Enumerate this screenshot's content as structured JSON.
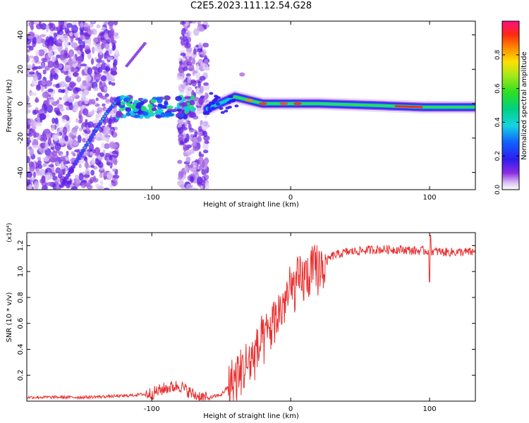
{
  "title": "C2E5.2023.111.12.54.G28",
  "chart_data": [
    {
      "type": "heatmap",
      "panel": "spectrogram",
      "xlabel": "Height of straight line (km)",
      "ylabel": "Frequency (Hz)",
      "xlim": [
        -190,
        133
      ],
      "ylim": [
        -50,
        48
      ],
      "xticks": [
        -100,
        0,
        100
      ],
      "xtick_labels": [
        "-100",
        "0",
        "100"
      ],
      "yticks": [
        -40,
        -20,
        0,
        20,
        40
      ],
      "ytick_labels": [
        "-40",
        "-20",
        "0",
        "20",
        "40"
      ],
      "colorbar": {
        "label": "Normalized spectral amplitude",
        "range": [
          0,
          1
        ],
        "ticks": [
          0.0,
          0.2,
          0.4,
          0.6,
          0.8
        ],
        "tick_labels": [
          "0.0",
          "0.2",
          "0.4",
          "0.6",
          "0.8"
        ]
      },
      "features": [
        {
          "name": "main signal trace",
          "x": [
            -60,
            -40,
            -20,
            0,
            20,
            60,
            95,
            133
          ],
          "freq": [
            -3,
            4,
            0,
            0,
            0,
            -1,
            -2,
            -2
          ]
        },
        {
          "name": "diagonal chirp",
          "x": [
            -165,
            -150,
            -140,
            -132,
            -125
          ],
          "freq": [
            -48,
            -28,
            -15,
            -5,
            2
          ]
        },
        {
          "name": "upper streak",
          "x": [
            -118,
            -105
          ],
          "freq": [
            22,
            35
          ]
        }
      ]
    },
    {
      "type": "line",
      "panel": "snr",
      "xlabel": "Height of straight line (km)",
      "ylabel": "SNR (10 * v/v)",
      "y_multiplier": "(x10⁴)",
      "xlim": [
        -190,
        133
      ],
      "ylim": [
        0.0,
        1.3
      ],
      "xticks": [
        -100,
        0,
        100
      ],
      "xtick_labels": [
        "-100",
        "0",
        "100"
      ],
      "yticks": [
        0.2,
        0.4,
        0.6,
        0.8,
        1.0,
        1.2
      ],
      "ytick_labels": [
        "0.2",
        "0.4",
        "0.6",
        "0.8",
        "1.0",
        "1.2"
      ],
      "series": [
        {
          "name": "SNR",
          "color": "#e83030",
          "x": [
            -190,
            -150,
            -120,
            -100,
            -90,
            -80,
            -70,
            -60,
            -50,
            -40,
            -30,
            -20,
            -10,
            0,
            10,
            20,
            30,
            40,
            50,
            60,
            70,
            80,
            90,
            100,
            110,
            120,
            133
          ],
          "y": [
            0.03,
            0.03,
            0.04,
            0.06,
            0.1,
            0.12,
            0.05,
            0.02,
            0.05,
            0.17,
            0.3,
            0.45,
            0.65,
            0.85,
            0.95,
            1.02,
            1.12,
            1.15,
            1.16,
            1.17,
            1.17,
            1.17,
            1.16,
            1.16,
            1.15,
            1.15,
            1.15
          ]
        }
      ]
    }
  ]
}
